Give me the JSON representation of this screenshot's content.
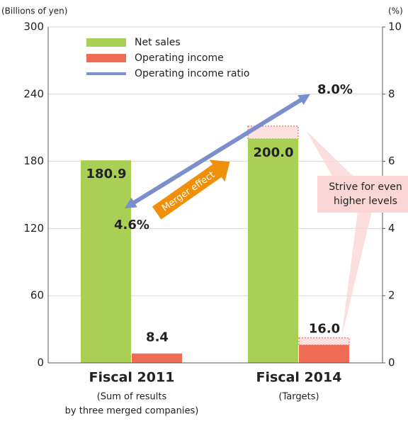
{
  "chart_data": {
    "type": "bar",
    "y_unit": "(Billions of yen)",
    "y2_unit": "(%)",
    "categories": [
      "Fiscal 2011",
      "Fiscal 2014"
    ],
    "category_notes": [
      [
        "(Sum of results",
        "by three merged companies)"
      ],
      [
        "(Targets)"
      ]
    ],
    "series": [
      {
        "name": "Net sales",
        "type": "bar",
        "color": "#a9cf54",
        "values": [
          180.9,
          200.0
        ],
        "value_labels": [
          "180.9",
          "200.0"
        ]
      },
      {
        "name": "Operating income",
        "type": "bar",
        "color": "#ef6b55",
        "values": [
          8.4,
          16.0
        ],
        "value_labels": [
          "8.4",
          "16.0"
        ]
      },
      {
        "name": "Operating income ratio",
        "type": "line",
        "axis": "y2",
        "color": "#7b8fcc",
        "values": [
          4.6,
          8.0
        ],
        "value_labels": [
          "4.6%",
          "8.0%"
        ]
      }
    ],
    "annotations": [
      {
        "text": "Merger effect",
        "color": "#f0900a"
      },
      {
        "lines": [
          "Strive for even",
          "higher levels"
        ],
        "color": "#fbd6d6"
      }
    ],
    "ylim": [
      0,
      300
    ],
    "yticks": [
      0,
      60,
      120,
      180,
      240,
      300
    ],
    "y2lim": [
      0,
      10
    ],
    "y2ticks": [
      0,
      2,
      4,
      6,
      8,
      10
    ],
    "grid": true,
    "legend": "upper left"
  }
}
